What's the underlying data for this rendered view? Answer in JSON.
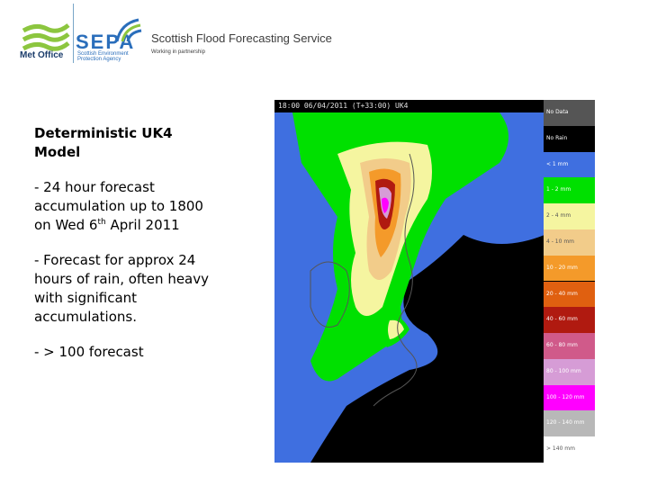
{
  "header": {
    "metoffice_label": "Met Office",
    "sepa_label": "SEPA",
    "sepa_subtitle_1": "Scottish Environment",
    "sepa_subtitle_2": "Protection Agency",
    "service_title": "Scottish Flood Forecasting Service",
    "service_subtitle": "Working in partnership"
  },
  "content": {
    "heading": "Deterministic UK4 Model",
    "para1_before": "- 24 hour forecast accumulation up to 1800 on Wed 6",
    "para1_sup": "th",
    "para1_after": " April 2011",
    "para2": "- Forecast for approx 24 hours of rain, often heavy with significant accumulations.",
    "para3": "- > 100 forecast"
  },
  "map": {
    "header_text": "18:00 06/04/2011 (T+33:00) UK4",
    "legend": [
      {
        "label": "No Data",
        "color": "#555555",
        "text_color": "#ffffff"
      },
      {
        "label": "No Rain",
        "color": "#000000",
        "text_color": "#ffffff"
      },
      {
        "label": "< 1 mm",
        "color": "#3f6fe0",
        "text_color": "#ffffff"
      },
      {
        "label": "1 - 2 mm",
        "color": "#00e000",
        "text_color": "#ffffff"
      },
      {
        "label": "2 - 4 mm",
        "color": "#f5f5a0",
        "text_color": "#555555"
      },
      {
        "label": "4 - 10 mm",
        "color": "#f2cc8a",
        "text_color": "#555555"
      },
      {
        "label": "10 - 20 mm",
        "color": "#f49a2a",
        "text_color": "#ffffff"
      },
      {
        "label": "20 - 40 mm",
        "color": "#e06010",
        "text_color": "#ffffff"
      },
      {
        "label": "40 - 60 mm",
        "color": "#b01a10",
        "text_color": "#ffffff"
      },
      {
        "label": "60 - 80 mm",
        "color": "#d05a8a",
        "text_color": "#ffffff"
      },
      {
        "label": "80 - 100 mm",
        "color": "#d69cd6",
        "text_color": "#ffffff"
      },
      {
        "label": "100 - 120 mm",
        "color": "#ff00ff",
        "text_color": "#ffffff"
      },
      {
        "label": "120 - 140 mm",
        "color": "#b8b8b8",
        "text_color": "#ffffff"
      },
      {
        "label": "> 140 mm",
        "color": "#ffffff",
        "text_color": "#555555"
      }
    ]
  }
}
